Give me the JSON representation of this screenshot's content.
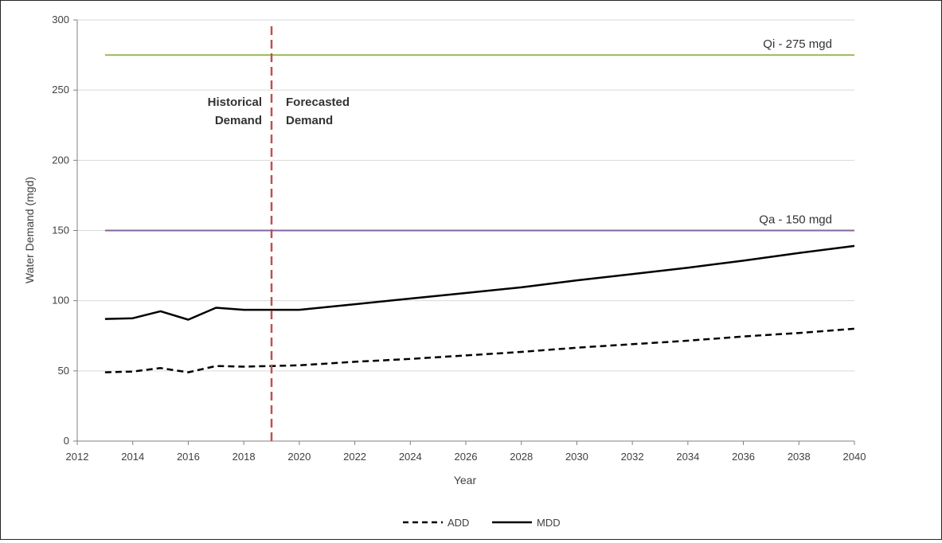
{
  "chart_data": {
    "type": "line",
    "title": "",
    "xlabel": "Year",
    "ylabel": "Water Demand (mgd)",
    "xlim": [
      2012,
      2040
    ],
    "ylim": [
      0,
      300
    ],
    "xticks": [
      2012,
      2014,
      2016,
      2018,
      2020,
      2022,
      2024,
      2026,
      2028,
      2030,
      2032,
      2034,
      2036,
      2038,
      2040
    ],
    "yticks": [
      0,
      50,
      100,
      150,
      200,
      250,
      300
    ],
    "grid": "horizontal",
    "legend_position": "bottom-center",
    "series": [
      {
        "name": "ADD",
        "style": "dashed",
        "color": "#000000",
        "points": [
          [
            2013,
            49
          ],
          [
            2014,
            49.5
          ],
          [
            2015,
            52
          ],
          [
            2016,
            49
          ],
          [
            2017,
            53.5
          ],
          [
            2018,
            53
          ],
          [
            2019,
            53.5
          ],
          [
            2020,
            54
          ],
          [
            2022,
            56.5
          ],
          [
            2024,
            58.5
          ],
          [
            2026,
            61
          ],
          [
            2028,
            63.5
          ],
          [
            2030,
            66.5
          ],
          [
            2032,
            69
          ],
          [
            2034,
            71.5
          ],
          [
            2036,
            74.5
          ],
          [
            2038,
            77
          ],
          [
            2040,
            80
          ]
        ]
      },
      {
        "name": "MDD",
        "style": "solid",
        "color": "#000000",
        "points": [
          [
            2013,
            87
          ],
          [
            2014,
            87.5
          ],
          [
            2015,
            92.5
          ],
          [
            2016,
            86.5
          ],
          [
            2017,
            95
          ],
          [
            2018,
            93.5
          ],
          [
            2019,
            93.5
          ],
          [
            2020,
            93.5
          ],
          [
            2022,
            97.5
          ],
          [
            2024,
            101.5
          ],
          [
            2026,
            105.5
          ],
          [
            2028,
            109.5
          ],
          [
            2030,
            114.5
          ],
          [
            2032,
            119
          ],
          [
            2034,
            123.5
          ],
          [
            2036,
            128.5
          ],
          [
            2038,
            134
          ],
          [
            2040,
            139
          ]
        ]
      }
    ],
    "reference_lines": [
      {
        "label": "Qi - 275 mgd",
        "value": 275,
        "color": "#9bbb59"
      },
      {
        "label": "Qa - 150 mgd",
        "value": 150,
        "color": "#8064a2"
      }
    ],
    "divider": {
      "x": 2019,
      "color": "#c0504d",
      "style": "dashed",
      "label_left": [
        "Historical",
        "Demand"
      ],
      "label_right": [
        "Forecasted",
        "Demand"
      ]
    },
    "gridline_color": "#d9d9d9",
    "axis_color": "#808080"
  }
}
